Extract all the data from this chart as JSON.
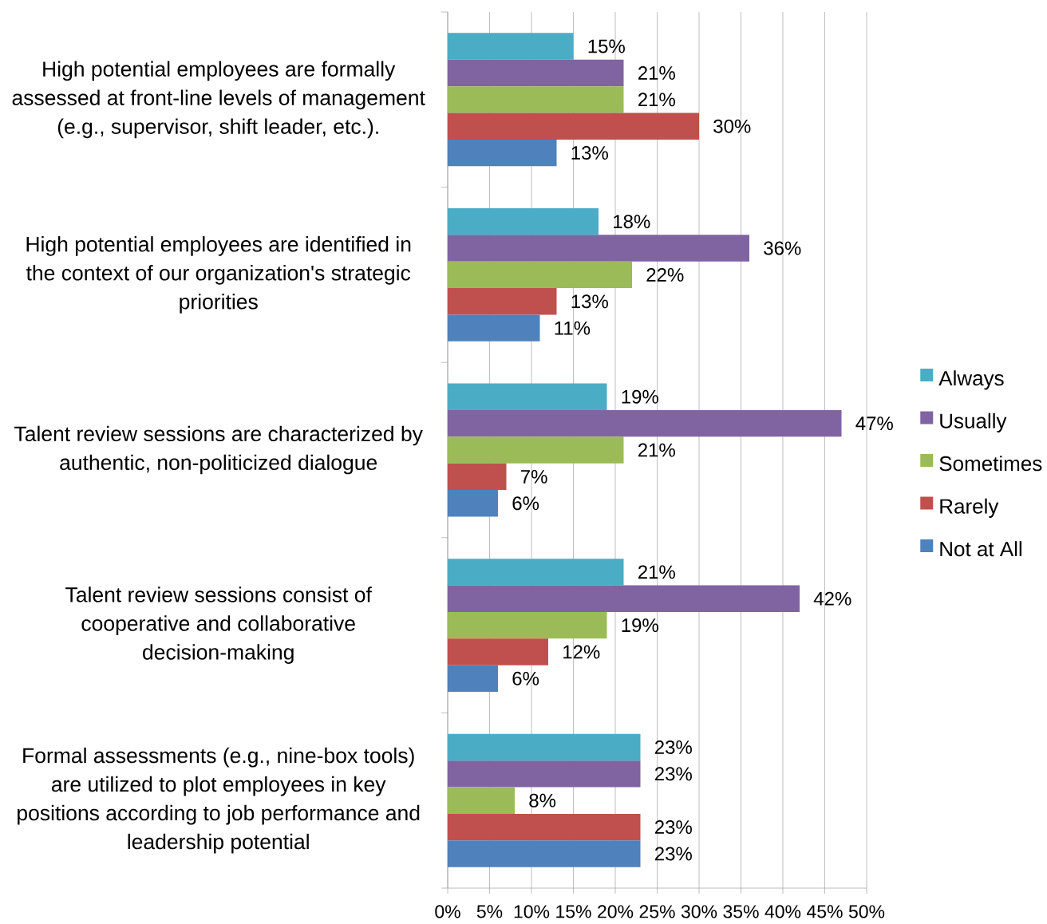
{
  "chart_data": {
    "type": "bar",
    "orientation": "horizontal",
    "categories": [
      "High potential employees are formally assessed at front-line levels of management (e.g., supervisor, shift leader, etc.).",
      "High potential employees are identified in the context of our organization's strategic priorities",
      "Talent review sessions are characterized by authentic, non-politicized dialogue",
      "Talent review sessions consist of cooperative and collaborative decision-making",
      "Formal assessments (e.g., nine-box tools) are utilized to plot employees in key positions according to job performance and leadership potential"
    ],
    "series": [
      {
        "name": "Always",
        "color": "#4bacc6",
        "values": [
          15,
          18,
          19,
          21,
          23
        ],
        "value_labels": [
          "15%",
          "18%",
          "19%",
          "21%",
          "23%"
        ]
      },
      {
        "name": "Usually",
        "color": "#8064a2",
        "values": [
          21,
          36,
          47,
          42,
          23
        ],
        "value_labels": [
          "21%",
          "36%",
          "47%",
          "42%",
          "23%"
        ]
      },
      {
        "name": "Sometimes",
        "color": "#9bbb59",
        "values": [
          21,
          22,
          21,
          19,
          8
        ],
        "value_labels": [
          "21%",
          "22%",
          "21%",
          "19%",
          "8%"
        ]
      },
      {
        "name": "Rarely",
        "color": "#c0504d",
        "values": [
          30,
          13,
          7,
          12,
          23
        ],
        "value_labels": [
          "30%",
          "13%",
          "7%",
          "12%",
          "23%"
        ]
      },
      {
        "name": "Not at All",
        "color": "#4f81bd",
        "values": [
          13,
          11,
          6,
          6,
          23
        ],
        "value_labels": [
          "13%",
          "11%",
          "6%",
          "6%",
          "23%"
        ]
      }
    ],
    "xlim": [
      0,
      50
    ],
    "xticks": [
      {
        "value": 0,
        "label": "0%"
      },
      {
        "value": 5,
        "label": "5%"
      },
      {
        "value": 10,
        "label": "10%"
      },
      {
        "value": 15,
        "label": "15%"
      },
      {
        "value": 20,
        "label": "20%"
      },
      {
        "value": 25,
        "label": "25%"
      },
      {
        "value": 30,
        "label": "30%"
      },
      {
        "value": 35,
        "label": "35%"
      },
      {
        "value": 40,
        "label": "40%"
      },
      {
        "value": 45,
        "label": "45%"
      },
      {
        "value": 50,
        "label": "50%"
      }
    ],
    "grid": "x",
    "legend": "right"
  }
}
